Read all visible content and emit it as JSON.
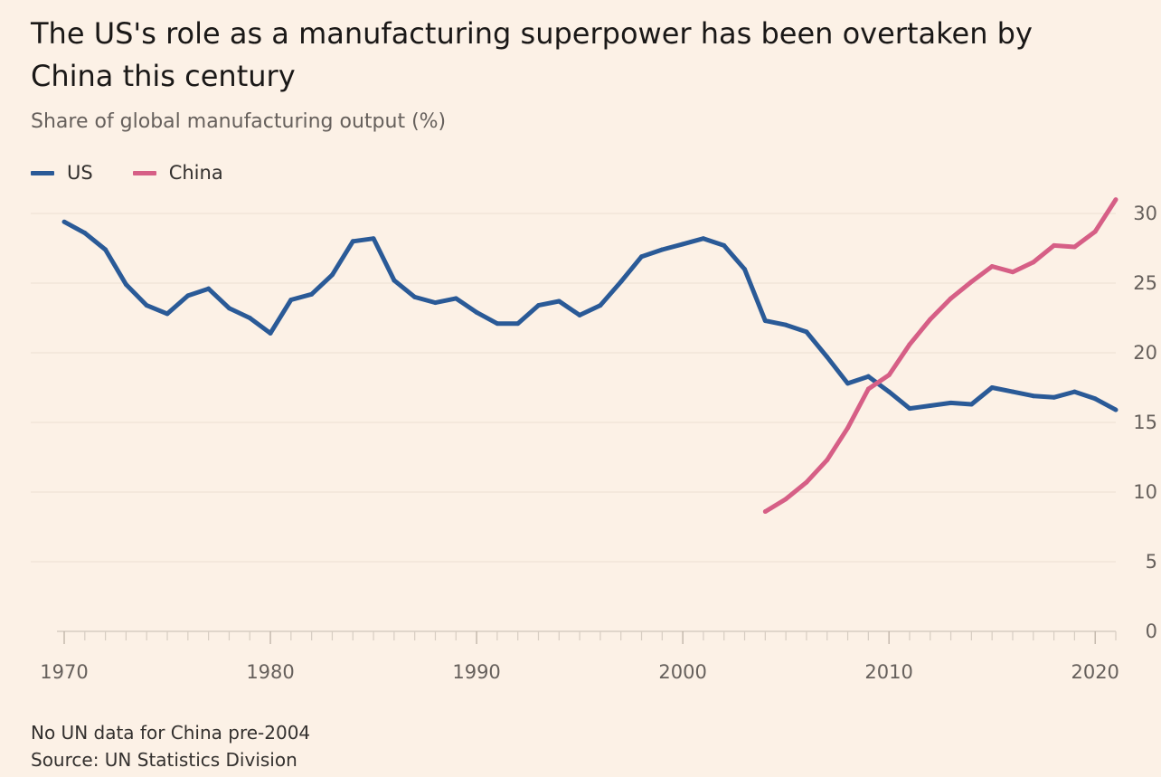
{
  "title": "The US's role as a manufacturing superpower has been overtaken by China this century",
  "subtitle": "Share of global manufacturing output (%)",
  "legend": [
    {
      "name": "US",
      "color": "#2a5a97"
    },
    {
      "name": "China",
      "color": "#d65f86"
    }
  ],
  "footnote": {
    "note": "No UN data for China pre-2004",
    "source": "Source: UN Statistics Division"
  },
  "chart_data": {
    "type": "line",
    "xlim": [
      1970,
      2021
    ],
    "ylim": [
      0,
      30
    ],
    "x_ticks": [
      1970,
      1980,
      1990,
      2000,
      2010,
      2020
    ],
    "y_ticks": [
      0,
      5,
      10,
      15,
      20,
      25,
      30
    ],
    "y_axis_side": "right",
    "grid": "horizontal",
    "series": [
      {
        "name": "US",
        "color": "#2a5a97",
        "x": [
          1970,
          1971,
          1972,
          1973,
          1974,
          1975,
          1976,
          1977,
          1978,
          1979,
          1980,
          1981,
          1982,
          1983,
          1984,
          1985,
          1986,
          1987,
          1988,
          1989,
          1990,
          1991,
          1992,
          1993,
          1994,
          1995,
          1996,
          1997,
          1998,
          1999,
          2000,
          2001,
          2002,
          2003,
          2004,
          2005,
          2006,
          2007,
          2008,
          2009,
          2010,
          2011,
          2012,
          2013,
          2014,
          2015,
          2016,
          2017,
          2018,
          2019,
          2020,
          2021
        ],
        "values": [
          29.4,
          28.6,
          27.4,
          24.9,
          23.4,
          22.8,
          24.1,
          24.6,
          23.2,
          22.5,
          21.4,
          23.8,
          24.2,
          25.6,
          28.0,
          28.2,
          25.2,
          24.0,
          23.6,
          23.9,
          22.9,
          22.1,
          22.1,
          23.4,
          23.7,
          22.7,
          23.4,
          25.1,
          26.9,
          27.4,
          27.8,
          28.2,
          27.7,
          26.0,
          22.3,
          22.0,
          21.5,
          19.7,
          17.8,
          18.3,
          17.2,
          16.0,
          16.2,
          16.4,
          16.3,
          17.5,
          17.2,
          16.9,
          16.8,
          17.2,
          16.7,
          15.9
        ]
      },
      {
        "name": "China",
        "color": "#d65f86",
        "x": [
          2004,
          2005,
          2006,
          2007,
          2008,
          2009,
          2010,
          2011,
          2012,
          2013,
          2014,
          2015,
          2016,
          2017,
          2018,
          2019,
          2020,
          2021
        ],
        "values": [
          8.6,
          9.5,
          10.7,
          12.3,
          14.6,
          17.4,
          18.4,
          20.6,
          22.4,
          23.9,
          25.1,
          26.2,
          25.8,
          26.5,
          27.7,
          27.6,
          28.7,
          31.0
        ]
      }
    ]
  }
}
